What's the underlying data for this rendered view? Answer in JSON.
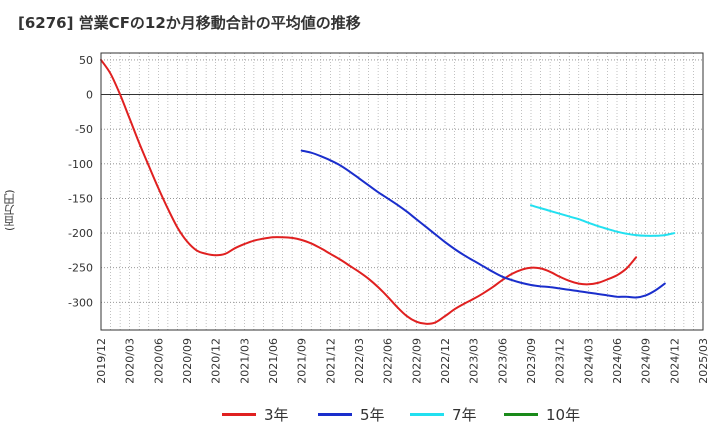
{
  "chart_data": {
    "type": "line",
    "title": "[6276]  営業CFの12か月移動合計の平均値の推移",
    "xlabel": "",
    "ylabel": "(百万円)",
    "ylim": [
      -340,
      60
    ],
    "yticks": [
      50,
      0,
      -50,
      -100,
      -150,
      -200,
      -250,
      -300
    ],
    "xticks": [
      "2019/12",
      "2020/03",
      "2020/06",
      "2020/09",
      "2020/12",
      "2021/03",
      "2021/06",
      "2021/09",
      "2021/12",
      "2022/03",
      "2022/06",
      "2022/09",
      "2022/12",
      "2023/03",
      "2023/06",
      "2023/09",
      "2023/12",
      "2024/03",
      "2024/06",
      "2024/09",
      "2024/12",
      "2025/03"
    ],
    "grid": true,
    "legend_position": "bottom",
    "series": [
      {
        "name": "3年",
        "color": "#e02020",
        "points": [
          [
            "2019/12",
            50
          ],
          [
            "2020/01",
            30
          ],
          [
            "2020/02",
            0
          ],
          [
            "2020/03",
            -35
          ],
          [
            "2020/04",
            -70
          ],
          [
            "2020/05",
            -103
          ],
          [
            "2020/06",
            -135
          ],
          [
            "2020/07",
            -165
          ],
          [
            "2020/08",
            -192
          ],
          [
            "2020/09",
            -212
          ],
          [
            "2020/10",
            -225
          ],
          [
            "2020/11",
            -230
          ],
          [
            "2020/12",
            -232
          ],
          [
            "2021/01",
            -230
          ],
          [
            "2021/02",
            -222
          ],
          [
            "2021/03",
            -216
          ],
          [
            "2021/04",
            -211
          ],
          [
            "2021/05",
            -208
          ],
          [
            "2021/06",
            -206
          ],
          [
            "2021/07",
            -206
          ],
          [
            "2021/08",
            -207
          ],
          [
            "2021/09",
            -210
          ],
          [
            "2021/10",
            -215
          ],
          [
            "2021/11",
            -222
          ],
          [
            "2021/12",
            -230
          ],
          [
            "2022/01",
            -238
          ],
          [
            "2022/02",
            -247
          ],
          [
            "2022/03",
            -256
          ],
          [
            "2022/04",
            -266
          ],
          [
            "2022/05",
            -278
          ],
          [
            "2022/06",
            -292
          ],
          [
            "2022/07",
            -307
          ],
          [
            "2022/08",
            -320
          ],
          [
            "2022/09",
            -328
          ],
          [
            "2022/10",
            -331
          ],
          [
            "2022/11",
            -329
          ],
          [
            "2022/12",
            -320
          ],
          [
            "2023/01",
            -310
          ],
          [
            "2023/02",
            -302
          ],
          [
            "2023/03",
            -295
          ],
          [
            "2023/04",
            -287
          ],
          [
            "2023/05",
            -278
          ],
          [
            "2023/06",
            -268
          ],
          [
            "2023/07",
            -259
          ],
          [
            "2023/08",
            -253
          ],
          [
            "2023/09",
            -250
          ],
          [
            "2023/10",
            -251
          ],
          [
            "2023/11",
            -256
          ],
          [
            "2023/12",
            -263
          ],
          [
            "2024/01",
            -269
          ],
          [
            "2024/02",
            -273
          ],
          [
            "2024/03",
            -274
          ],
          [
            "2024/04",
            -272
          ],
          [
            "2024/05",
            -267
          ],
          [
            "2024/06",
            -261
          ],
          [
            "2024/07",
            -251
          ],
          [
            "2024/08",
            -235
          ]
        ]
      },
      {
        "name": "5年",
        "color": "#1a2ecc",
        "points": [
          [
            "2021/09",
            -81
          ],
          [
            "2021/10",
            -84
          ],
          [
            "2021/11",
            -89
          ],
          [
            "2021/12",
            -95
          ],
          [
            "2022/01",
            -102
          ],
          [
            "2022/02",
            -111
          ],
          [
            "2022/03",
            -121
          ],
          [
            "2022/04",
            -131
          ],
          [
            "2022/05",
            -141
          ],
          [
            "2022/06",
            -150
          ],
          [
            "2022/07",
            -159
          ],
          [
            "2022/08",
            -169
          ],
          [
            "2022/09",
            -180
          ],
          [
            "2022/10",
            -191
          ],
          [
            "2022/11",
            -202
          ],
          [
            "2022/12",
            -213
          ],
          [
            "2023/01",
            -223
          ],
          [
            "2023/02",
            -232
          ],
          [
            "2023/03",
            -240
          ],
          [
            "2023/04",
            -248
          ],
          [
            "2023/05",
            -256
          ],
          [
            "2023/06",
            -263
          ],
          [
            "2023/07",
            -268
          ],
          [
            "2023/08",
            -272
          ],
          [
            "2023/09",
            -275
          ],
          [
            "2023/10",
            -277
          ],
          [
            "2023/11",
            -278
          ],
          [
            "2023/12",
            -280
          ],
          [
            "2024/01",
            -282
          ],
          [
            "2024/02",
            -284
          ],
          [
            "2024/03",
            -286
          ],
          [
            "2024/04",
            -288
          ],
          [
            "2024/05",
            -290
          ],
          [
            "2024/06",
            -292
          ],
          [
            "2024/07",
            -292
          ],
          [
            "2024/08",
            -293
          ],
          [
            "2024/09",
            -290
          ],
          [
            "2024/10",
            -283
          ],
          [
            "2024/11",
            -273
          ]
        ]
      },
      {
        "name": "7年",
        "color": "#22e0f0",
        "points": [
          [
            "2023/09",
            -160
          ],
          [
            "2023/10",
            -164
          ],
          [
            "2023/11",
            -168
          ],
          [
            "2023/12",
            -172
          ],
          [
            "2024/01",
            -176
          ],
          [
            "2024/02",
            -180
          ],
          [
            "2024/03",
            -185
          ],
          [
            "2024/04",
            -190
          ],
          [
            "2024/05",
            -194
          ],
          [
            "2024/06",
            -198
          ],
          [
            "2024/07",
            -201
          ],
          [
            "2024/08",
            -203
          ],
          [
            "2024/09",
            -204
          ],
          [
            "2024/10",
            -204
          ],
          [
            "2024/11",
            -203
          ],
          [
            "2024/12",
            -200
          ]
        ]
      },
      {
        "name": "10年",
        "color": "#1a8a1a",
        "points": []
      }
    ]
  }
}
